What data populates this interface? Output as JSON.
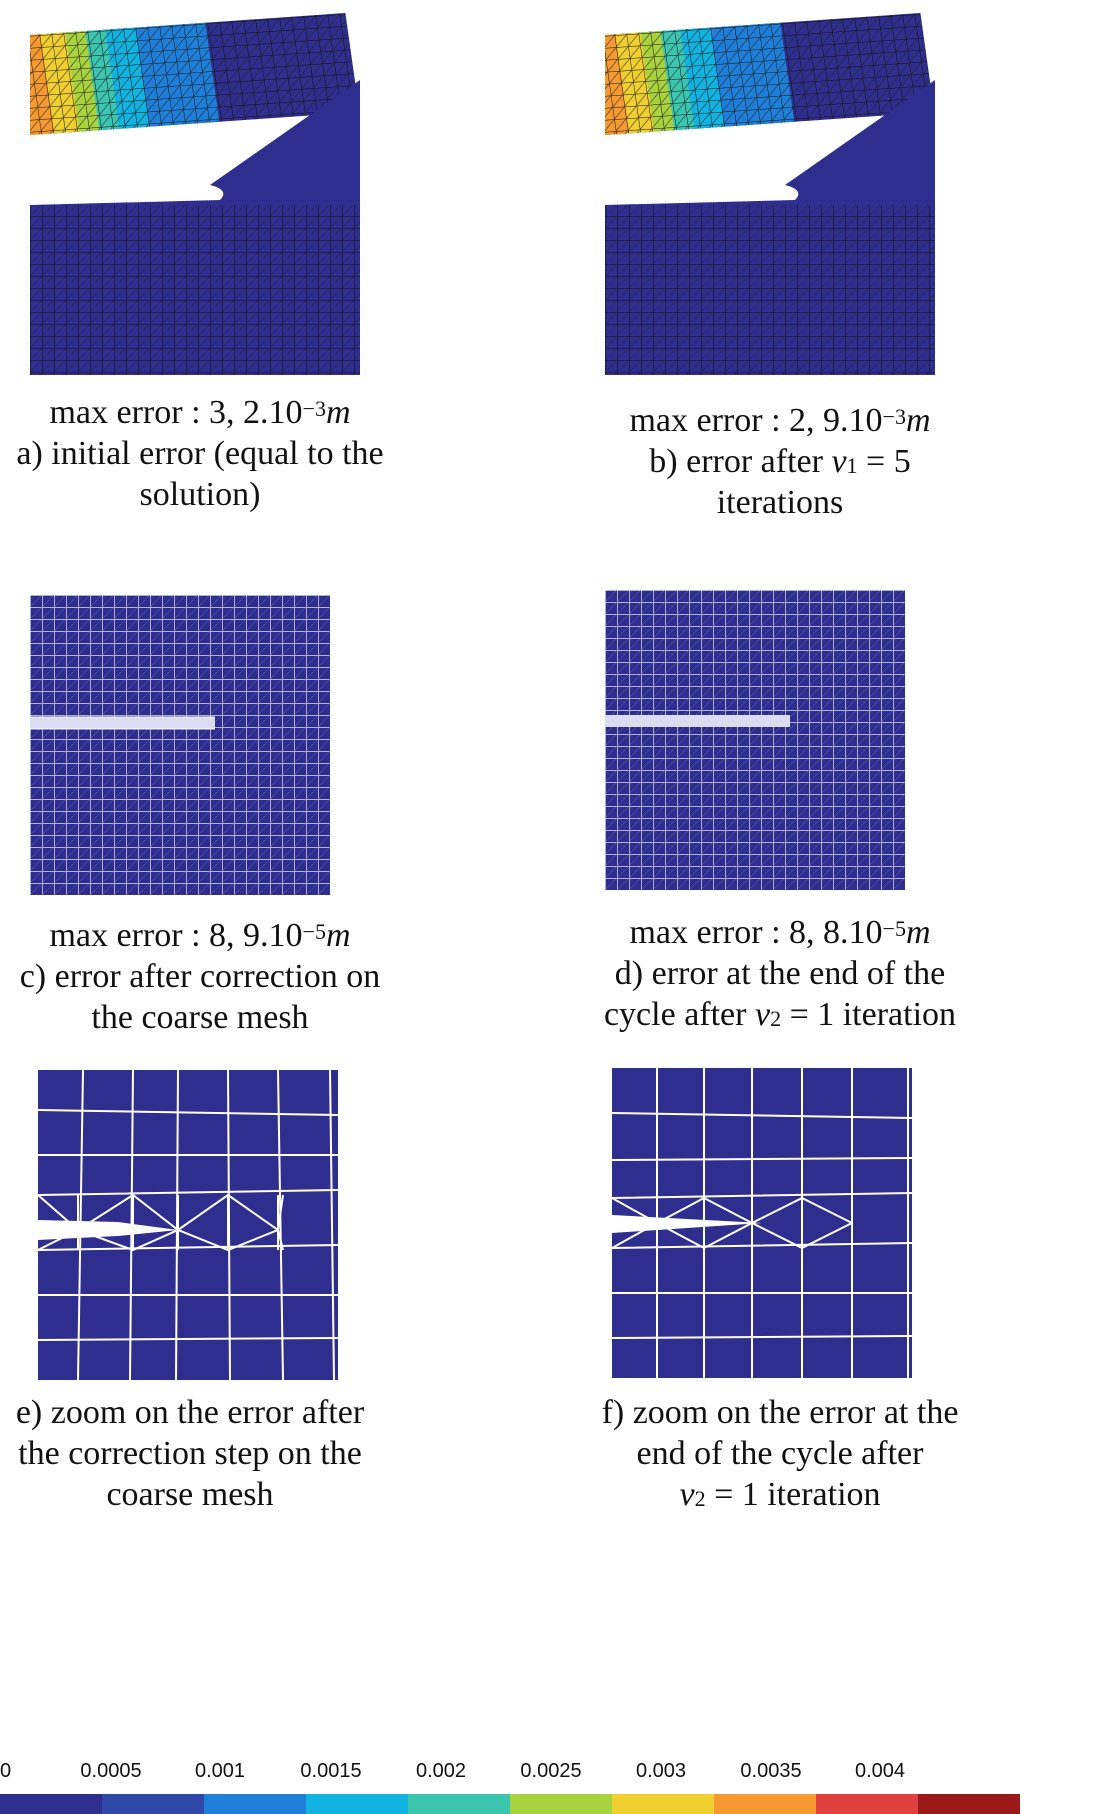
{
  "figure": {
    "panels": [
      {
        "id": "a",
        "caption_error": "max error : 3, 2.10",
        "exp": "−3",
        "unit": "m",
        "line2": "a) initial error (equal to the",
        "line3": "solution)"
      },
      {
        "id": "b",
        "caption_error": "max error : 2, 9.10",
        "exp": "−3",
        "unit": "m",
        "line2_pre": "b) error after ",
        "line2_var": "ν",
        "line2_sub": "1",
        "line2_post": " = 5",
        "line3": "iterations"
      },
      {
        "id": "c",
        "caption_error": "max error : 8, 9.10",
        "exp": "−5",
        "unit": "m",
        "line2": "c) error after correction on",
        "line3": "the coarse mesh"
      },
      {
        "id": "d",
        "caption_error": "max error : 8, 8.10",
        "exp": "−5",
        "unit": "m",
        "line2": "d) error at the end of the",
        "line3_pre": "cycle after ",
        "line3_var": "ν",
        "line3_sub": "2",
        "line3_post": " = 1 iteration"
      },
      {
        "id": "e",
        "line1": "e) zoom on the error after",
        "line2": "the correction step on the",
        "line3": "coarse mesh"
      },
      {
        "id": "f",
        "line1": "f) zoom on the error at the",
        "line2": "end of the cycle after",
        "line3_var": "ν",
        "line3_sub": "2",
        "line3_post": " = 1 iteration"
      }
    ],
    "colorbar": {
      "ticks": [
        "0",
        "0.0005",
        "0.001",
        "0.0015",
        "0.002",
        "0.0025",
        "0.003",
        "0.0035",
        "0.004"
      ],
      "colors": [
        "#2e2e8e",
        "#3048a8",
        "#1f7fd8",
        "#12b3e0",
        "#3cc6b0",
        "#a8d23e",
        "#f0d030",
        "#f59a30",
        "#e04040",
        "#9a1a1a"
      ]
    }
  }
}
